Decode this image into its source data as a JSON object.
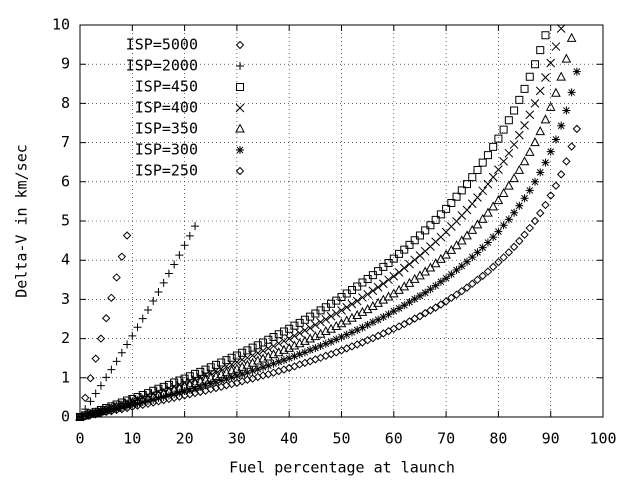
{
  "chart_data": {
    "type": "scatter",
    "xlabel": "Fuel percentage at launch",
    "ylabel": "Delta-V in km/sec",
    "xlim": [
      0,
      100
    ],
    "xticks": [
      0,
      10,
      20,
      30,
      40,
      50,
      60,
      70,
      80,
      90,
      100
    ],
    "ylim": [
      0,
      10
    ],
    "yticks": [
      0,
      1,
      2,
      3,
      4,
      5,
      6,
      7,
      8,
      9,
      10
    ],
    "grid": true,
    "legend": "top-left",
    "x": [
      0,
      1,
      2,
      3,
      4,
      5,
      6,
      7,
      8,
      9,
      10,
      11,
      12,
      13,
      14,
      15,
      16,
      17,
      18,
      19,
      20,
      21,
      22,
      23,
      24,
      25,
      26,
      27,
      28,
      29,
      30,
      31,
      32,
      33,
      34,
      35,
      36,
      37,
      38,
      39,
      40,
      41,
      42,
      43,
      44,
      45,
      46,
      47,
      48,
      49,
      50,
      51,
      52,
      53,
      54,
      55,
      56,
      57,
      58,
      59,
      60,
      61,
      62,
      63,
      64,
      65,
      66,
      67,
      68,
      69,
      70,
      71,
      72,
      73,
      74,
      75,
      76,
      77,
      78,
      79,
      80,
      81,
      82,
      83,
      84,
      85,
      86,
      87,
      88,
      89,
      90,
      91,
      92,
      93,
      94,
      95
    ],
    "series": [
      {
        "name": "ISP=5000",
        "color": "#000000",
        "marker": "diamond",
        "values": [
          null,
          0.49,
          0.99,
          1.49,
          2.0,
          2.52,
          3.04,
          3.56,
          4.09,
          4.63,
          null,
          null,
          null,
          null,
          null,
          null,
          null,
          null,
          null,
          null,
          null,
          null,
          null,
          null,
          null,
          null,
          null,
          null,
          null,
          null,
          null,
          null,
          null,
          null,
          null,
          null,
          null,
          null,
          null,
          null,
          null,
          null,
          null,
          null,
          null,
          null,
          null,
          null,
          null,
          null,
          null,
          null,
          null,
          null,
          null,
          null,
          null,
          null,
          null,
          null,
          null,
          null,
          null,
          null,
          null,
          null,
          null,
          null,
          null,
          null,
          null,
          null,
          null,
          null,
          null,
          null,
          null,
          null,
          null,
          null,
          null,
          null,
          null,
          null,
          null,
          null,
          null,
          null,
          null,
          null,
          null,
          null,
          null,
          null,
          null,
          null
        ]
      },
      {
        "name": "ISP=2000",
        "color": "#000000",
        "marker": "plus",
        "values": [
          null,
          0.2,
          0.4,
          0.6,
          0.8,
          1.01,
          1.21,
          1.42,
          1.64,
          1.85,
          2.07,
          2.29,
          2.51,
          2.73,
          2.96,
          3.19,
          3.42,
          3.66,
          3.89,
          4.13,
          4.38,
          4.62,
          4.87,
          null,
          null,
          null,
          null,
          null,
          null,
          null,
          null,
          null,
          null,
          null,
          null,
          null,
          null,
          null,
          null,
          null,
          null,
          null,
          null,
          null,
          null,
          null,
          null,
          null,
          null,
          null,
          null,
          null,
          null,
          null,
          null,
          null,
          null,
          null,
          null,
          null,
          null,
          null,
          null,
          null,
          null,
          null,
          null,
          null,
          null,
          null,
          null,
          null,
          null,
          null,
          null,
          null,
          null,
          null,
          null,
          null,
          null,
          null,
          null,
          null,
          null,
          null,
          null,
          null,
          null,
          null,
          null,
          null,
          null,
          null,
          null,
          null
        ]
      },
      {
        "name": "ISP=450",
        "color": "#000000",
        "marker": "square",
        "values": [
          0,
          0.04,
          0.09,
          0.13,
          0.18,
          0.23,
          0.27,
          0.32,
          0.37,
          0.42,
          0.46,
          0.51,
          0.56,
          0.61,
          0.67,
          0.72,
          0.77,
          0.82,
          0.88,
          0.93,
          0.98,
          1.04,
          1.1,
          1.15,
          1.21,
          1.27,
          1.33,
          1.39,
          1.45,
          1.51,
          1.57,
          1.64,
          1.7,
          1.77,
          1.83,
          1.9,
          1.97,
          2.04,
          2.11,
          2.18,
          2.25,
          2.33,
          2.4,
          2.48,
          2.56,
          2.64,
          2.72,
          2.8,
          2.89,
          2.97,
          3.06,
          3.15,
          3.24,
          3.33,
          3.43,
          3.52,
          3.62,
          3.72,
          3.83,
          3.93,
          4.04,
          4.16,
          4.27,
          4.39,
          4.51,
          4.63,
          4.76,
          4.89,
          5.03,
          5.17,
          5.31,
          5.46,
          5.62,
          5.78,
          5.94,
          6.12,
          6.3,
          6.49,
          6.68,
          6.89,
          7.1,
          7.33,
          7.57,
          7.82,
          8.09,
          8.37,
          8.68,
          9.0,
          9.36,
          9.74,
          null,
          null,
          null,
          null,
          null,
          null
        ]
      },
      {
        "name": "ISP=400",
        "color": "#000000",
        "marker": "cross",
        "values": [
          0,
          0.04,
          0.08,
          0.12,
          0.16,
          0.2,
          0.24,
          0.28,
          0.33,
          0.37,
          0.41,
          0.46,
          0.5,
          0.55,
          0.59,
          0.64,
          0.68,
          0.73,
          0.78,
          0.83,
          0.88,
          0.92,
          0.97,
          1.03,
          1.08,
          1.13,
          1.18,
          1.23,
          1.29,
          1.34,
          1.4,
          1.46,
          1.51,
          1.57,
          1.63,
          1.69,
          1.75,
          1.81,
          1.88,
          1.94,
          2.0,
          2.07,
          2.14,
          2.21,
          2.27,
          2.35,
          2.42,
          2.49,
          2.57,
          2.64,
          2.72,
          2.8,
          2.88,
          2.96,
          3.05,
          3.13,
          3.22,
          3.31,
          3.4,
          3.5,
          3.59,
          3.69,
          3.8,
          3.9,
          4.01,
          4.12,
          4.23,
          4.35,
          4.47,
          4.59,
          4.72,
          4.86,
          4.99,
          5.14,
          5.28,
          5.44,
          5.6,
          5.77,
          5.94,
          6.12,
          6.31,
          6.52,
          6.73,
          6.95,
          7.19,
          7.44,
          7.71,
          8.0,
          8.32,
          8.66,
          9.03,
          9.45,
          9.91,
          null,
          null,
          null
        ]
      },
      {
        "name": "ISP=350",
        "color": "#000000",
        "marker": "triangle",
        "values": [
          0,
          0.03,
          0.07,
          0.1,
          0.14,
          0.18,
          0.21,
          0.25,
          0.29,
          0.32,
          0.36,
          0.4,
          0.44,
          0.48,
          0.52,
          0.56,
          0.6,
          0.64,
          0.68,
          0.72,
          0.77,
          0.81,
          0.85,
          0.9,
          0.94,
          0.99,
          1.03,
          1.08,
          1.13,
          1.18,
          1.22,
          1.27,
          1.32,
          1.37,
          1.43,
          1.48,
          1.53,
          1.59,
          1.64,
          1.7,
          1.75,
          1.81,
          1.87,
          1.93,
          1.99,
          2.05,
          2.11,
          2.18,
          2.24,
          2.31,
          2.38,
          2.45,
          2.52,
          2.59,
          2.67,
          2.74,
          2.82,
          2.9,
          2.98,
          3.06,
          3.14,
          3.23,
          3.32,
          3.41,
          3.51,
          3.6,
          3.7,
          3.8,
          3.91,
          4.02,
          4.13,
          4.25,
          4.37,
          4.49,
          4.62,
          4.76,
          4.9,
          5.04,
          5.2,
          5.36,
          5.52,
          5.7,
          5.89,
          6.08,
          6.29,
          6.51,
          6.75,
          7.0,
          7.28,
          7.58,
          7.9,
          8.26,
          8.67,
          9.13,
          9.66,
          null
        ]
      },
      {
        "name": "ISP=300",
        "color": "#000000",
        "marker": "star",
        "values": [
          0,
          0.03,
          0.06,
          0.09,
          0.12,
          0.15,
          0.18,
          0.21,
          0.25,
          0.28,
          0.31,
          0.34,
          0.38,
          0.41,
          0.44,
          0.48,
          0.51,
          0.55,
          0.58,
          0.62,
          0.66,
          0.69,
          0.73,
          0.77,
          0.81,
          0.85,
          0.89,
          0.93,
          0.97,
          1.01,
          1.05,
          1.09,
          1.13,
          1.18,
          1.22,
          1.27,
          1.31,
          1.36,
          1.41,
          1.45,
          1.5,
          1.55,
          1.6,
          1.65,
          1.71,
          1.76,
          1.81,
          1.87,
          1.92,
          1.98,
          2.04,
          2.1,
          2.16,
          2.22,
          2.28,
          2.35,
          2.42,
          2.48,
          2.55,
          2.62,
          2.7,
          2.77,
          2.85,
          2.93,
          3.01,
          3.09,
          3.17,
          3.26,
          3.35,
          3.45,
          3.54,
          3.64,
          3.75,
          3.85,
          3.96,
          4.08,
          4.2,
          4.32,
          4.45,
          4.59,
          4.73,
          4.89,
          5.04,
          5.21,
          5.39,
          5.58,
          5.78,
          6.0,
          6.24,
          6.49,
          6.77,
          7.08,
          7.43,
          7.82,
          8.28,
          8.81
        ]
      },
      {
        "name": "ISP=250",
        "color": "#000000",
        "marker": "diamond",
        "values": [
          0,
          0.02,
          0.05,
          0.07,
          0.1,
          0.13,
          0.15,
          0.18,
          0.2,
          0.23,
          0.26,
          0.29,
          0.31,
          0.34,
          0.37,
          0.4,
          0.43,
          0.46,
          0.49,
          0.52,
          0.55,
          0.58,
          0.61,
          0.64,
          0.67,
          0.71,
          0.74,
          0.77,
          0.81,
          0.84,
          0.87,
          0.91,
          0.95,
          0.98,
          1.02,
          1.06,
          1.09,
          1.13,
          1.17,
          1.21,
          1.25,
          1.29,
          1.34,
          1.38,
          1.42,
          1.47,
          1.51,
          1.56,
          1.6,
          1.65,
          1.7,
          1.75,
          1.8,
          1.85,
          1.9,
          1.96,
          2.01,
          2.07,
          2.13,
          2.19,
          2.25,
          2.31,
          2.37,
          2.44,
          2.51,
          2.57,
          2.65,
          2.72,
          2.79,
          2.87,
          2.95,
          3.04,
          3.12,
          3.21,
          3.3,
          3.4,
          3.5,
          3.6,
          3.71,
          3.83,
          3.95,
          4.07,
          4.2,
          4.34,
          4.49,
          4.65,
          4.82,
          5.0,
          5.2,
          5.41,
          5.65,
          5.9,
          6.19,
          6.52,
          6.9,
          7.35
        ]
      }
    ]
  }
}
